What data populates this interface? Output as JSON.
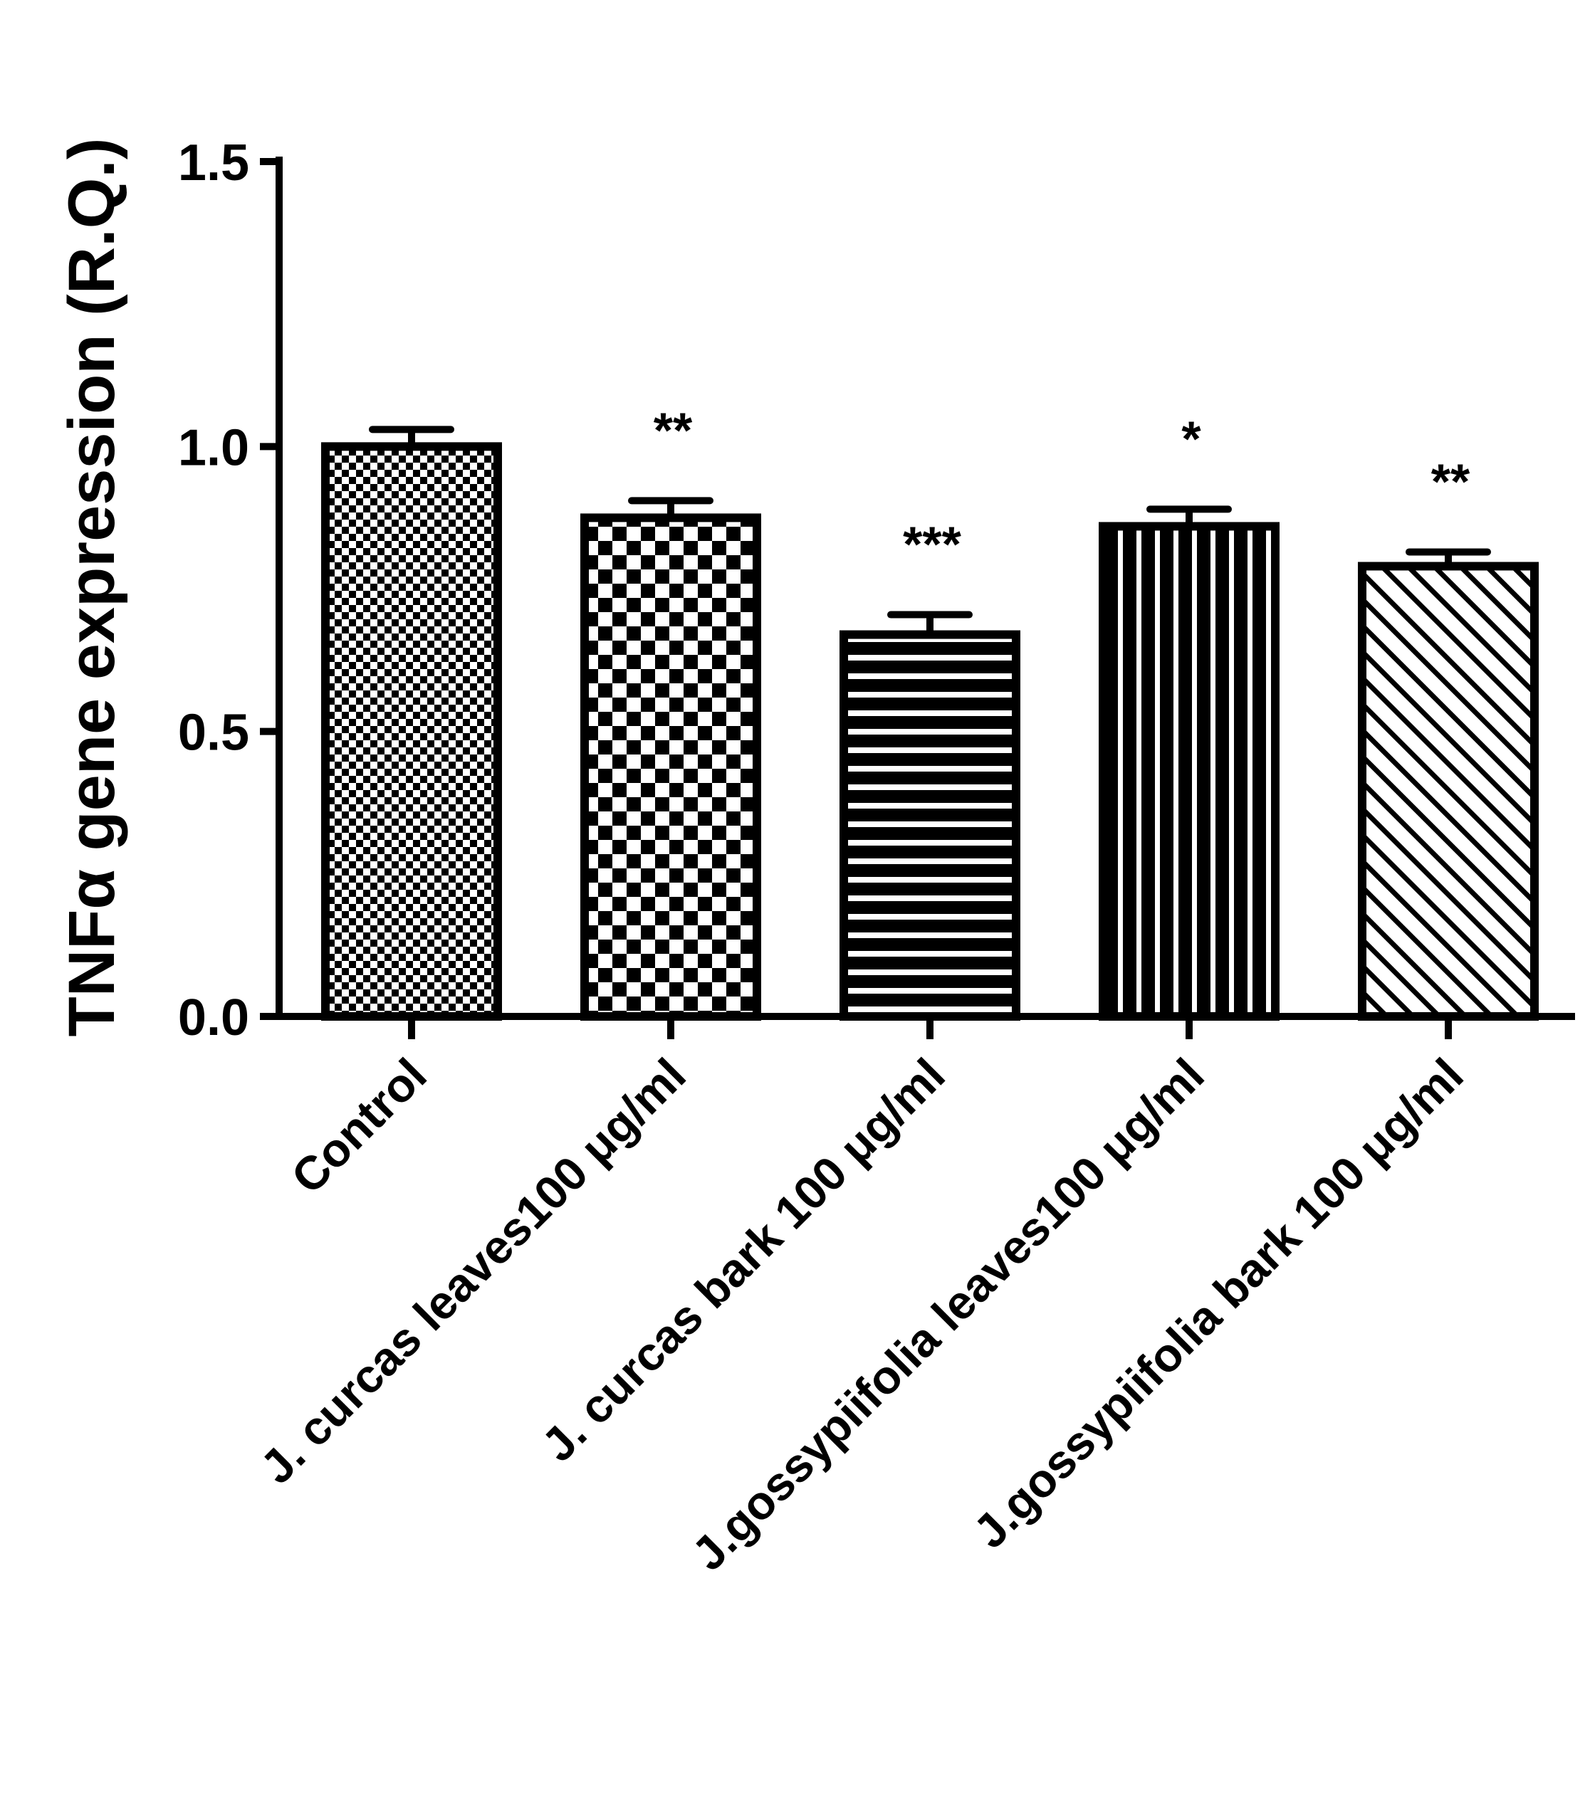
{
  "chart_data": {
    "type": "bar",
    "title": "",
    "xlabel": "",
    "ylabel": "TNFα gene expression (R.Q.)",
    "ylim": [
      0,
      1.5
    ],
    "yticks": [
      "0.0",
      "0.5",
      "1.0",
      "1.5"
    ],
    "grid": false,
    "categories": [
      "Control",
      "J. curcas leaves100 μg/ml",
      "J. curcas bark 100 μg/ml",
      "J.gossypiifolia leaves100 μg/ml",
      "J.gossypiifolia bark 100 μg/ml"
    ],
    "series": [
      {
        "values": [
          1.0,
          0.875,
          0.67,
          0.86,
          0.79
        ],
        "errors": [
          0.03,
          0.03,
          0.035,
          0.03,
          0.025
        ],
        "significance": [
          "",
          "**",
          "***",
          "*",
          "**"
        ],
        "patterns": [
          "fine-checker",
          "coarse-checker",
          "horizontal-stripes",
          "vertical-stripes",
          "diagonal-stripes"
        ]
      }
    ]
  }
}
